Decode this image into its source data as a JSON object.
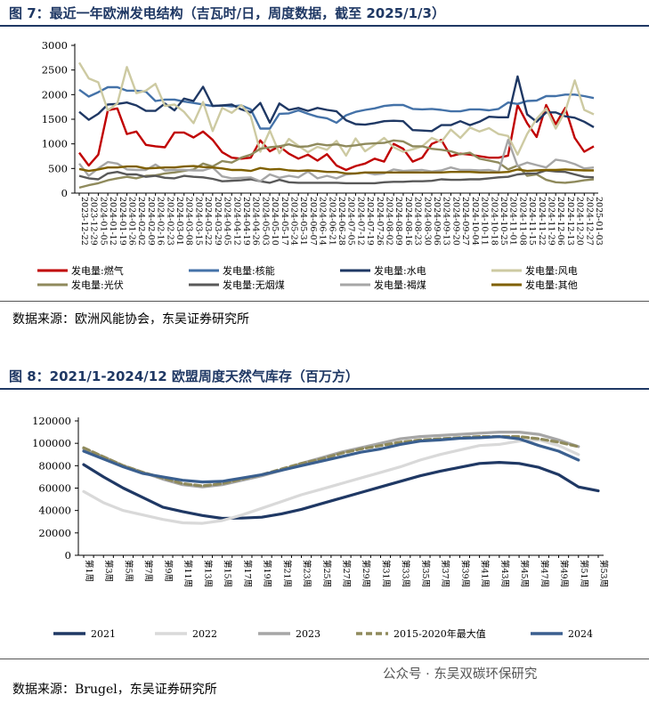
{
  "figure7": {
    "title": "图 7：最近一年欧洲发电结构（吉瓦时/日，周度数据，截至 2025/1/3）",
    "source": "数据来源：欧洲风能协会，东吴证券研究所"
  },
  "figure8": {
    "title": "图 8：2021/1-2024/12 欧盟周度天然气库存（百万方）",
    "source": "数据来源：Brugel，东吴证券研究所"
  },
  "watermark": "公众号 · 东吴双碳环保研究",
  "chart_data": [
    {
      "type": "line",
      "ylim": [
        0,
        3000
      ],
      "yticks": [
        0,
        500,
        1000,
        1500,
        2000,
        2500,
        3000
      ],
      "x_tick_labels": [
        "2023-12-22",
        "2023-12-29",
        "2024-01-05",
        "2024-01-12",
        "2024-01-19",
        "2024-01-26",
        "2024-02-02",
        "2024-02-09",
        "2024-02-16",
        "2024-02-23",
        "2024-03-01",
        "2024-03-08",
        "2024-03-15",
        "2024-03-22",
        "2024-03-29",
        "2024-04-05",
        "2024-04-12",
        "2024-04-19",
        "2024-04-26",
        "2024-05-03",
        "2024-05-10",
        "2024-05-17",
        "2024-05-24",
        "2024-05-31",
        "2024-06-07",
        "2024-06-14",
        "2024-06-21",
        "2024-06-28",
        "2024-07-05",
        "2024-07-12",
        "2024-07-19",
        "2024-07-26",
        "2024-08-02",
        "2024-08-09",
        "2024-08-16",
        "2024-08-23",
        "2024-08-30",
        "2024-09-06",
        "2024-09-13",
        "2024-09-20",
        "2024-09-27",
        "2024-10-04",
        "2024-10-11",
        "2024-10-18",
        "2024-10-25",
        "2024-11-01",
        "2024-11-08",
        "2024-11-15",
        "2024-11-22",
        "2024-11-29",
        "2024-12-06",
        "2024-12-13",
        "2024-12-20",
        "2024-12-27",
        "2025-01-03"
      ],
      "legend_position": "bottom",
      "series": [
        {
          "name": "发电量:燃气",
          "color": "#c00000",
          "values": [
            820,
            560,
            780,
            1680,
            1720,
            1200,
            1250,
            980,
            950,
            930,
            1230,
            1230,
            1130,
            1250,
            1080,
            830,
            720,
            700,
            720,
            1070,
            850,
            950,
            800,
            700,
            780,
            660,
            790,
            560,
            470,
            550,
            600,
            700,
            640,
            1000,
            900,
            640,
            720,
            1000,
            1080,
            750,
            800,
            780,
            750,
            720,
            720,
            760,
            1790,
            1420,
            1140,
            1790,
            1400,
            1730,
            1120,
            840,
            950
          ]
        },
        {
          "name": "发电量:核能",
          "color": "#4472a8",
          "values": [
            2100,
            1960,
            2050,
            2150,
            2150,
            2080,
            2080,
            2060,
            1870,
            1900,
            1900,
            1860,
            1830,
            1800,
            1770,
            1780,
            1760,
            1780,
            1700,
            1310,
            1310,
            1610,
            1620,
            1680,
            1610,
            1550,
            1520,
            1430,
            1580,
            1650,
            1690,
            1720,
            1770,
            1790,
            1790,
            1710,
            1700,
            1710,
            1690,
            1660,
            1660,
            1700,
            1700,
            1680,
            1710,
            1840,
            1810,
            1870,
            1880,
            1970,
            1970,
            2000,
            2000,
            1970,
            1930
          ]
        },
        {
          "name": "发电量:水电",
          "color": "#1f3864",
          "values": [
            1650,
            1490,
            1610,
            1800,
            1810,
            1840,
            1780,
            1670,
            1670,
            1820,
            1680,
            1920,
            1870,
            2160,
            1770,
            1780,
            1800,
            1700,
            1640,
            1830,
            1430,
            1820,
            1690,
            1730,
            1670,
            1730,
            1690,
            1660,
            1480,
            1400,
            1390,
            1420,
            1460,
            1470,
            1460,
            1280,
            1270,
            1260,
            1380,
            1380,
            1460,
            1380,
            1450,
            1550,
            1540,
            1540,
            2370,
            1600,
            1450,
            1640,
            1640,
            1560,
            1530,
            1450,
            1340
          ]
        },
        {
          "name": "发电量:风电",
          "color": "#cdcaa2",
          "values": [
            2650,
            2330,
            2250,
            1680,
            1820,
            2560,
            2030,
            2080,
            2220,
            1770,
            1800,
            1650,
            1420,
            1850,
            1260,
            1730,
            1630,
            1790,
            1560,
            840,
            1270,
            810,
            1100,
            960,
            830,
            940,
            880,
            1060,
            760,
            1110,
            850,
            980,
            1120,
            930,
            840,
            890,
            950,
            1120,
            1040,
            1290,
            1120,
            1330,
            1250,
            1320,
            1200,
            1160,
            780,
            1200,
            1510,
            1720,
            1310,
            1660,
            2290,
            1690,
            1600
          ]
        },
        {
          "name": "发电量:光伏",
          "color": "#8f8a5c",
          "values": [
            110,
            160,
            200,
            260,
            300,
            330,
            300,
            350,
            360,
            400,
            420,
            450,
            480,
            600,
            540,
            650,
            620,
            720,
            780,
            900,
            930,
            950,
            990,
            940,
            950,
            1000,
            970,
            990,
            950,
            970,
            1000,
            1010,
            1020,
            1070,
            1050,
            950,
            950,
            900,
            880,
            850,
            790,
            820,
            700,
            660,
            620,
            480,
            560,
            350,
            380,
            270,
            220,
            210,
            230,
            260,
            280
          ]
        },
        {
          "name": "发电量:无烟煤",
          "color": "#595959",
          "values": [
            350,
            300,
            280,
            400,
            430,
            380,
            380,
            330,
            350,
            310,
            300,
            350,
            330,
            320,
            290,
            240,
            250,
            260,
            280,
            240,
            210,
            270,
            220,
            210,
            210,
            210,
            210,
            210,
            200,
            200,
            200,
            200,
            220,
            230,
            230,
            240,
            240,
            250,
            280,
            270,
            270,
            280,
            280,
            300,
            320,
            330,
            380,
            400,
            400,
            460,
            440,
            430,
            380,
            330,
            320
          ]
        },
        {
          "name": "发电量:褐煤",
          "color": "#a6a6a6",
          "values": [
            600,
            350,
            500,
            630,
            600,
            480,
            470,
            470,
            580,
            460,
            470,
            470,
            460,
            460,
            520,
            340,
            300,
            310,
            320,
            240,
            380,
            310,
            350,
            320,
            440,
            300,
            350,
            300,
            380,
            400,
            420,
            380,
            400,
            480,
            450,
            460,
            470,
            440,
            460,
            520,
            470,
            470,
            460,
            470,
            430,
            1080,
            550,
            620,
            570,
            520,
            680,
            650,
            590,
            500,
            520
          ]
        },
        {
          "name": "发电量:其他",
          "color": "#7f6000",
          "values": [
            490,
            450,
            480,
            520,
            520,
            540,
            540,
            500,
            510,
            520,
            520,
            540,
            550,
            530,
            520,
            500,
            470,
            470,
            450,
            510,
            480,
            490,
            460,
            450,
            460,
            450,
            430,
            430,
            400,
            400,
            420,
            420,
            420,
            420,
            420,
            420,
            420,
            420,
            420,
            430,
            430,
            430,
            420,
            420,
            420,
            430,
            480,
            450,
            460,
            470,
            470,
            480,
            470,
            460,
            460
          ]
        }
      ]
    },
    {
      "type": "line",
      "ylim": [
        0,
        120000
      ],
      "yticks": [
        0,
        20000,
        40000,
        60000,
        80000,
        100000,
        120000
      ],
      "x_tick_labels": [
        "第1周",
        "第3周",
        "第5周",
        "第7周",
        "第9周",
        "第11周",
        "第13周",
        "第15周",
        "第17周",
        "第19周",
        "第21周",
        "第23周",
        "第25周",
        "第27周",
        "第29周",
        "第31周",
        "第33周",
        "第35周",
        "第37周",
        "第39周",
        "第41周",
        "第43周",
        "第45周",
        "第47周",
        "第49周",
        "第51周",
        "第53周"
      ],
      "legend_position": "bottom",
      "series": [
        {
          "name": "2021",
          "color": "#1f3864",
          "dash": "solid",
          "x": [
            1,
            3,
            5,
            7,
            9,
            11,
            13,
            15,
            17,
            19,
            21,
            23,
            25,
            27,
            29,
            31,
            33,
            35,
            37,
            39,
            41,
            43,
            45,
            47,
            49,
            51,
            53
          ],
          "values": [
            81000,
            70000,
            60000,
            51500,
            43000,
            39000,
            35500,
            33000,
            33200,
            34000,
            37000,
            41000,
            46000,
            51000,
            56000,
            61000,
            66000,
            71000,
            75000,
            78500,
            82000,
            83000,
            82000,
            78500,
            72000,
            61000,
            57500
          ]
        },
        {
          "name": "2022",
          "color": "#d9d9d9",
          "dash": "solid",
          "x": [
            1,
            3,
            5,
            7,
            9,
            11,
            13,
            15,
            17,
            19,
            21,
            23,
            25,
            27,
            29,
            31,
            33,
            35,
            37,
            39,
            41,
            43,
            45,
            47,
            49,
            51,
            53
          ],
          "values": [
            57000,
            47000,
            40000,
            36000,
            32000,
            29000,
            28500,
            31000,
            36000,
            42000,
            48000,
            54000,
            59000,
            64000,
            69000,
            74000,
            79000,
            85000,
            90000,
            94000,
            98000,
            99000,
            102000,
            103000,
            98000,
            90000,
            null
          ]
        },
        {
          "name": "2023",
          "color": "#a6a6a6",
          "dash": "solid",
          "x": [
            1,
            3,
            5,
            7,
            9,
            11,
            13,
            15,
            17,
            19,
            21,
            23,
            25,
            27,
            29,
            31,
            33,
            35,
            37,
            39,
            41,
            43,
            45,
            47,
            49,
            51,
            53
          ],
          "values": [
            95000,
            88000,
            80000,
            74000,
            68000,
            63000,
            61000,
            63000,
            67000,
            71000,
            76000,
            82000,
            87000,
            92000,
            96000,
            100000,
            104000,
            106000,
            107000,
            108000,
            109000,
            110000,
            110000,
            108000,
            103000,
            97000,
            null
          ]
        },
        {
          "name": "2015-2020年最大值",
          "color": "#8f8a5c",
          "dash": "dashed",
          "x": [
            1,
            3,
            5,
            7,
            9,
            11,
            13,
            15,
            17,
            19,
            21,
            23,
            25,
            27,
            29,
            31,
            33,
            35,
            37,
            39,
            41,
            43,
            45,
            47,
            49,
            51,
            53
          ],
          "values": [
            96000,
            88000,
            80000,
            74000,
            69000,
            64000,
            62000,
            64000,
            68000,
            72000,
            77000,
            82000,
            86000,
            91000,
            95000,
            98000,
            101000,
            103000,
            104000,
            105000,
            106000,
            106000,
            106000,
            104000,
            101000,
            97000,
            null
          ]
        },
        {
          "name": "2024",
          "color": "#3a5f8f",
          "dash": "solid",
          "x": [
            1,
            3,
            5,
            7,
            9,
            11,
            13,
            15,
            17,
            19,
            21,
            23,
            25,
            27,
            29,
            31,
            33,
            35,
            37,
            39,
            41,
            43,
            45,
            47,
            49,
            51,
            53
          ],
          "values": [
            93000,
            86000,
            79000,
            73000,
            70000,
            67000,
            65500,
            66000,
            69000,
            72000,
            76000,
            80000,
            84000,
            88000,
            92000,
            95000,
            99000,
            102000,
            103000,
            104500,
            105000,
            106000,
            104000,
            98000,
            93000,
            85000,
            null
          ]
        }
      ]
    }
  ]
}
